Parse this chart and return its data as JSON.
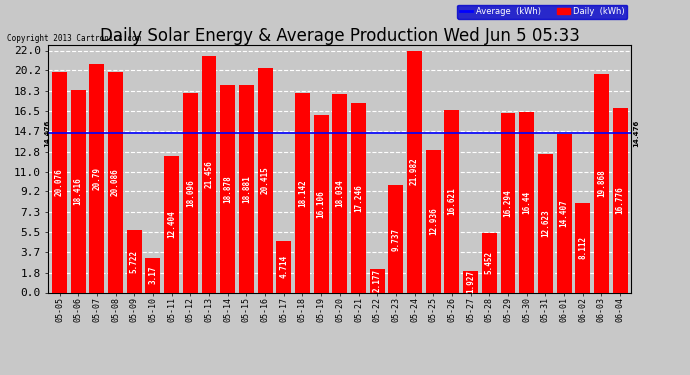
{
  "title": "Daily Solar Energy & Average Production Wed Jun 5 05:33",
  "copyright": "Copyright 2013 Cartronics.com",
  "categories": [
    "05-05",
    "05-06",
    "05-07",
    "05-08",
    "05-09",
    "05-10",
    "05-11",
    "05-12",
    "05-13",
    "05-14",
    "05-15",
    "05-16",
    "05-17",
    "05-18",
    "05-19",
    "05-20",
    "05-21",
    "05-22",
    "05-23",
    "05-24",
    "05-25",
    "05-26",
    "05-27",
    "05-28",
    "05-29",
    "05-30",
    "05-31",
    "06-01",
    "06-02",
    "06-03",
    "06-04"
  ],
  "values": [
    20.076,
    18.416,
    20.79,
    20.086,
    5.722,
    3.17,
    12.404,
    18.096,
    21.456,
    18.878,
    18.881,
    20.415,
    4.714,
    18.142,
    16.106,
    18.034,
    17.246,
    2.177,
    9.737,
    21.982,
    12.936,
    16.621,
    1.927,
    5.452,
    16.294,
    16.44,
    12.623,
    14.407,
    8.112,
    19.868,
    16.776
  ],
  "average": 14.476,
  "bar_color": "#ff0000",
  "avg_line_color": "#0000ff",
  "background_color": "#c8c8c8",
  "plot_bg_color": "#c8c8c8",
  "yticks": [
    0.0,
    1.8,
    3.7,
    5.5,
    7.3,
    9.2,
    11.0,
    12.8,
    14.7,
    16.5,
    18.3,
    20.2,
    22.0
  ],
  "avg_label": "14.476",
  "title_fontsize": 12,
  "ylabel_fontsize": 8,
  "xlabel_fontsize": 6,
  "bar_label_fontsize": 5.5,
  "legend_avg_label": "Average  (kWh)",
  "legend_daily_label": "Daily  (kWh)"
}
